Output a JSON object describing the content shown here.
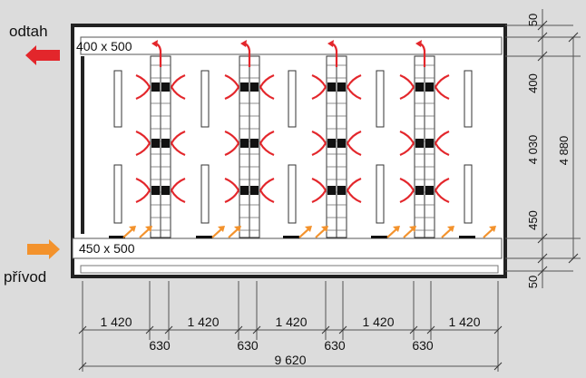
{
  "labels": {
    "exhaust_label": "odtah",
    "supply_label": "přívod",
    "exhaust_duct": "400 x 500",
    "supply_duct": "450 x 500"
  },
  "dimensions": {
    "top_margin": "50",
    "exhaust_height": "400",
    "inner_height": "4 030",
    "supply_height": "450",
    "bottom_margin": "50",
    "total_height": "4 880",
    "bay_widths": [
      "1 420",
      "1 420",
      "1 420",
      "1 420",
      "1 420"
    ],
    "rack_widths": [
      "630",
      "630",
      "630",
      "630"
    ],
    "total_width": "9 620"
  },
  "colors": {
    "background": "#dcdcdc",
    "room_fill": "#ffffff",
    "hot_air": "#e3262b",
    "cold_air": "#f3922c",
    "outline": "#222222"
  }
}
